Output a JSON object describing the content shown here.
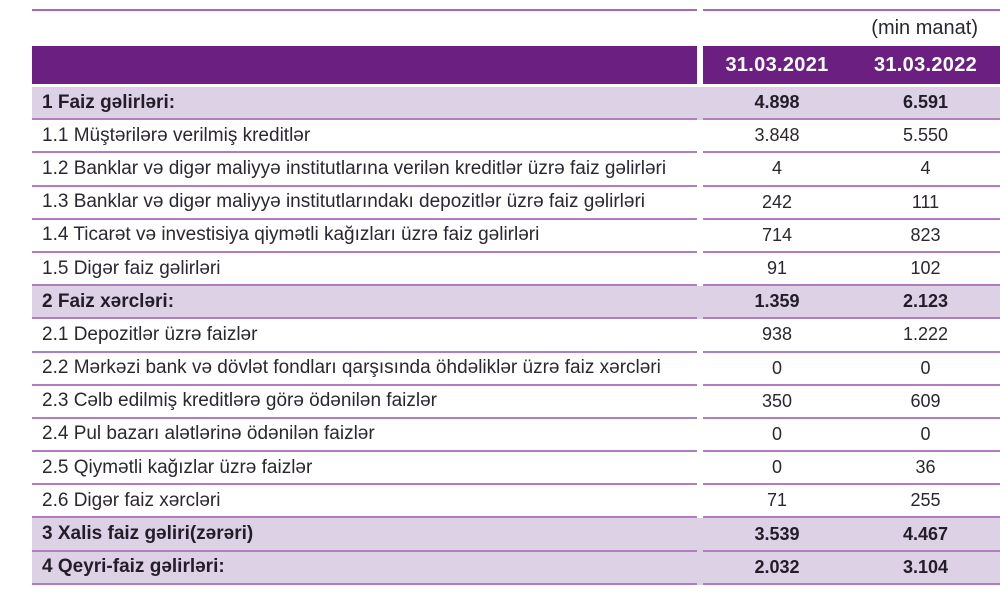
{
  "units_label": "(min manat)",
  "columns": [
    "31.03.2021",
    "31.03.2022"
  ],
  "colors": {
    "header_bg": "#6b1f80",
    "highlight_row_bg": "#ddd2e5",
    "separator_line": "#b27cc1",
    "top_line": "#a76ab6",
    "text": "#2b2630",
    "header_text": "#ffffff"
  },
  "table": {
    "rows": [
      {
        "label": "1 Faiz gəlirləri:",
        "v2021": "4.898",
        "v2022": "6.591",
        "highlight": true
      },
      {
        "label": "1.1 Müştərilərə verilmiş kreditlər",
        "v2021": "3.848",
        "v2022": "5.550",
        "highlight": false
      },
      {
        "label": "1.2 Banklar və digər maliyyə institutlarına verilən kreditlər üzrə faiz gəlirləri",
        "v2021": "4",
        "v2022": "4",
        "highlight": false
      },
      {
        "label": "1.3 Banklar və digər maliyyə institutlarındakı depozitlər üzrə faiz gəlirləri",
        "v2021": "242",
        "v2022": "111",
        "highlight": false
      },
      {
        "label": "1.4 Ticarət və investisiya qiymətli kağızları üzrə faiz gəlirləri",
        "v2021": "714",
        "v2022": "823",
        "highlight": false
      },
      {
        "label": "1.5 Digər faiz gəlirləri",
        "v2021": "91",
        "v2022": "102",
        "highlight": false
      },
      {
        "label": "2 Faiz xərcləri:",
        "v2021": "1.359",
        "v2022": "2.123",
        "highlight": true
      },
      {
        "label": "2.1 Depozitlər üzrə faizlər",
        "v2021": "938",
        "v2022": "1.222",
        "highlight": false
      },
      {
        "label": "2.2 Mərkəzi bank və dövlət fondları qarşısında öhdəliklər üzrə faiz xərcləri",
        "v2021": "0",
        "v2022": "0",
        "highlight": false
      },
      {
        "label": "2.3 Cəlb edilmiş kreditlərə görə ödənilən faizlər",
        "v2021": "350",
        "v2022": "609",
        "highlight": false
      },
      {
        "label": "2.4 Pul bazarı alətlərinə ödənilən faizlər",
        "v2021": "0",
        "v2022": "0",
        "highlight": false
      },
      {
        "label": "2.5 Qiymətli kağızlar üzrə faizlər",
        "v2021": "0",
        "v2022": "36",
        "highlight": false
      },
      {
        "label": "2.6 Digər faiz xərcləri",
        "v2021": "71",
        "v2022": "255",
        "highlight": false
      },
      {
        "label": "3 Xalis faiz gəliri(zərəri)",
        "v2021": "3.539",
        "v2022": "4.467",
        "highlight": true
      },
      {
        "label": "4 Qeyri-faiz gəlirləri:",
        "v2021": "2.032",
        "v2022": "3.104",
        "highlight": true
      }
    ]
  }
}
